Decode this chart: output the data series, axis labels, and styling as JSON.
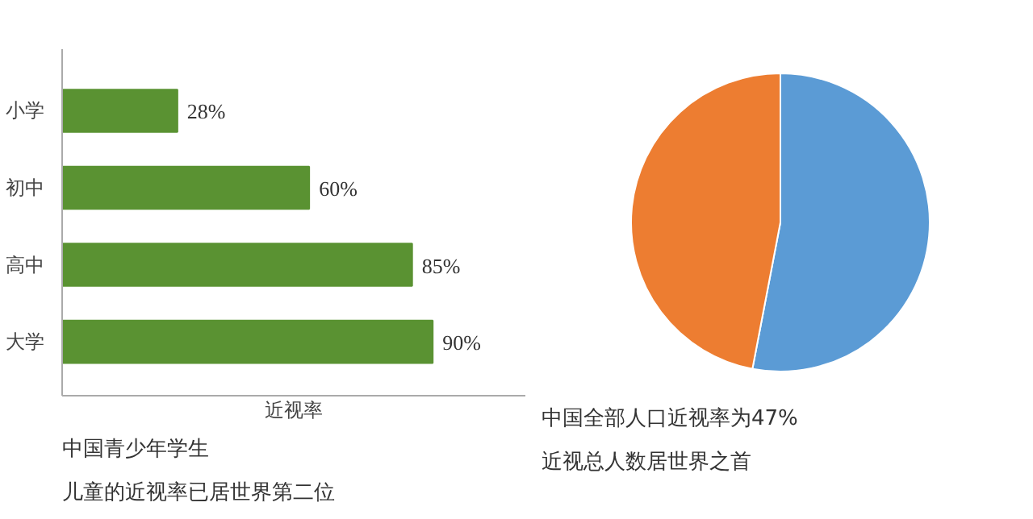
{
  "chart_data": [
    {
      "type": "bar",
      "orientation": "horizontal",
      "title": "中国青少年学生",
      "subtitle": "儿童的近视率已居世界第二位",
      "xlabel": "近视率",
      "categories": [
        "小学",
        "初中",
        "高中",
        "大学"
      ],
      "values": [
        28,
        60,
        85,
        90
      ],
      "value_labels": [
        "28%",
        "60%",
        "85%",
        "90%"
      ],
      "color": "#5a9232",
      "tick_labels": "y",
      "grid": false
    },
    {
      "type": "pie",
      "title": "中国全部人口近视率为47%",
      "subtitle": "近视总人数居世界之首",
      "categories": [
        null,
        null
      ],
      "values": [
        53,
        47
      ],
      "colors": [
        "#5b9bd5",
        "#ed7d31"
      ]
    }
  ]
}
